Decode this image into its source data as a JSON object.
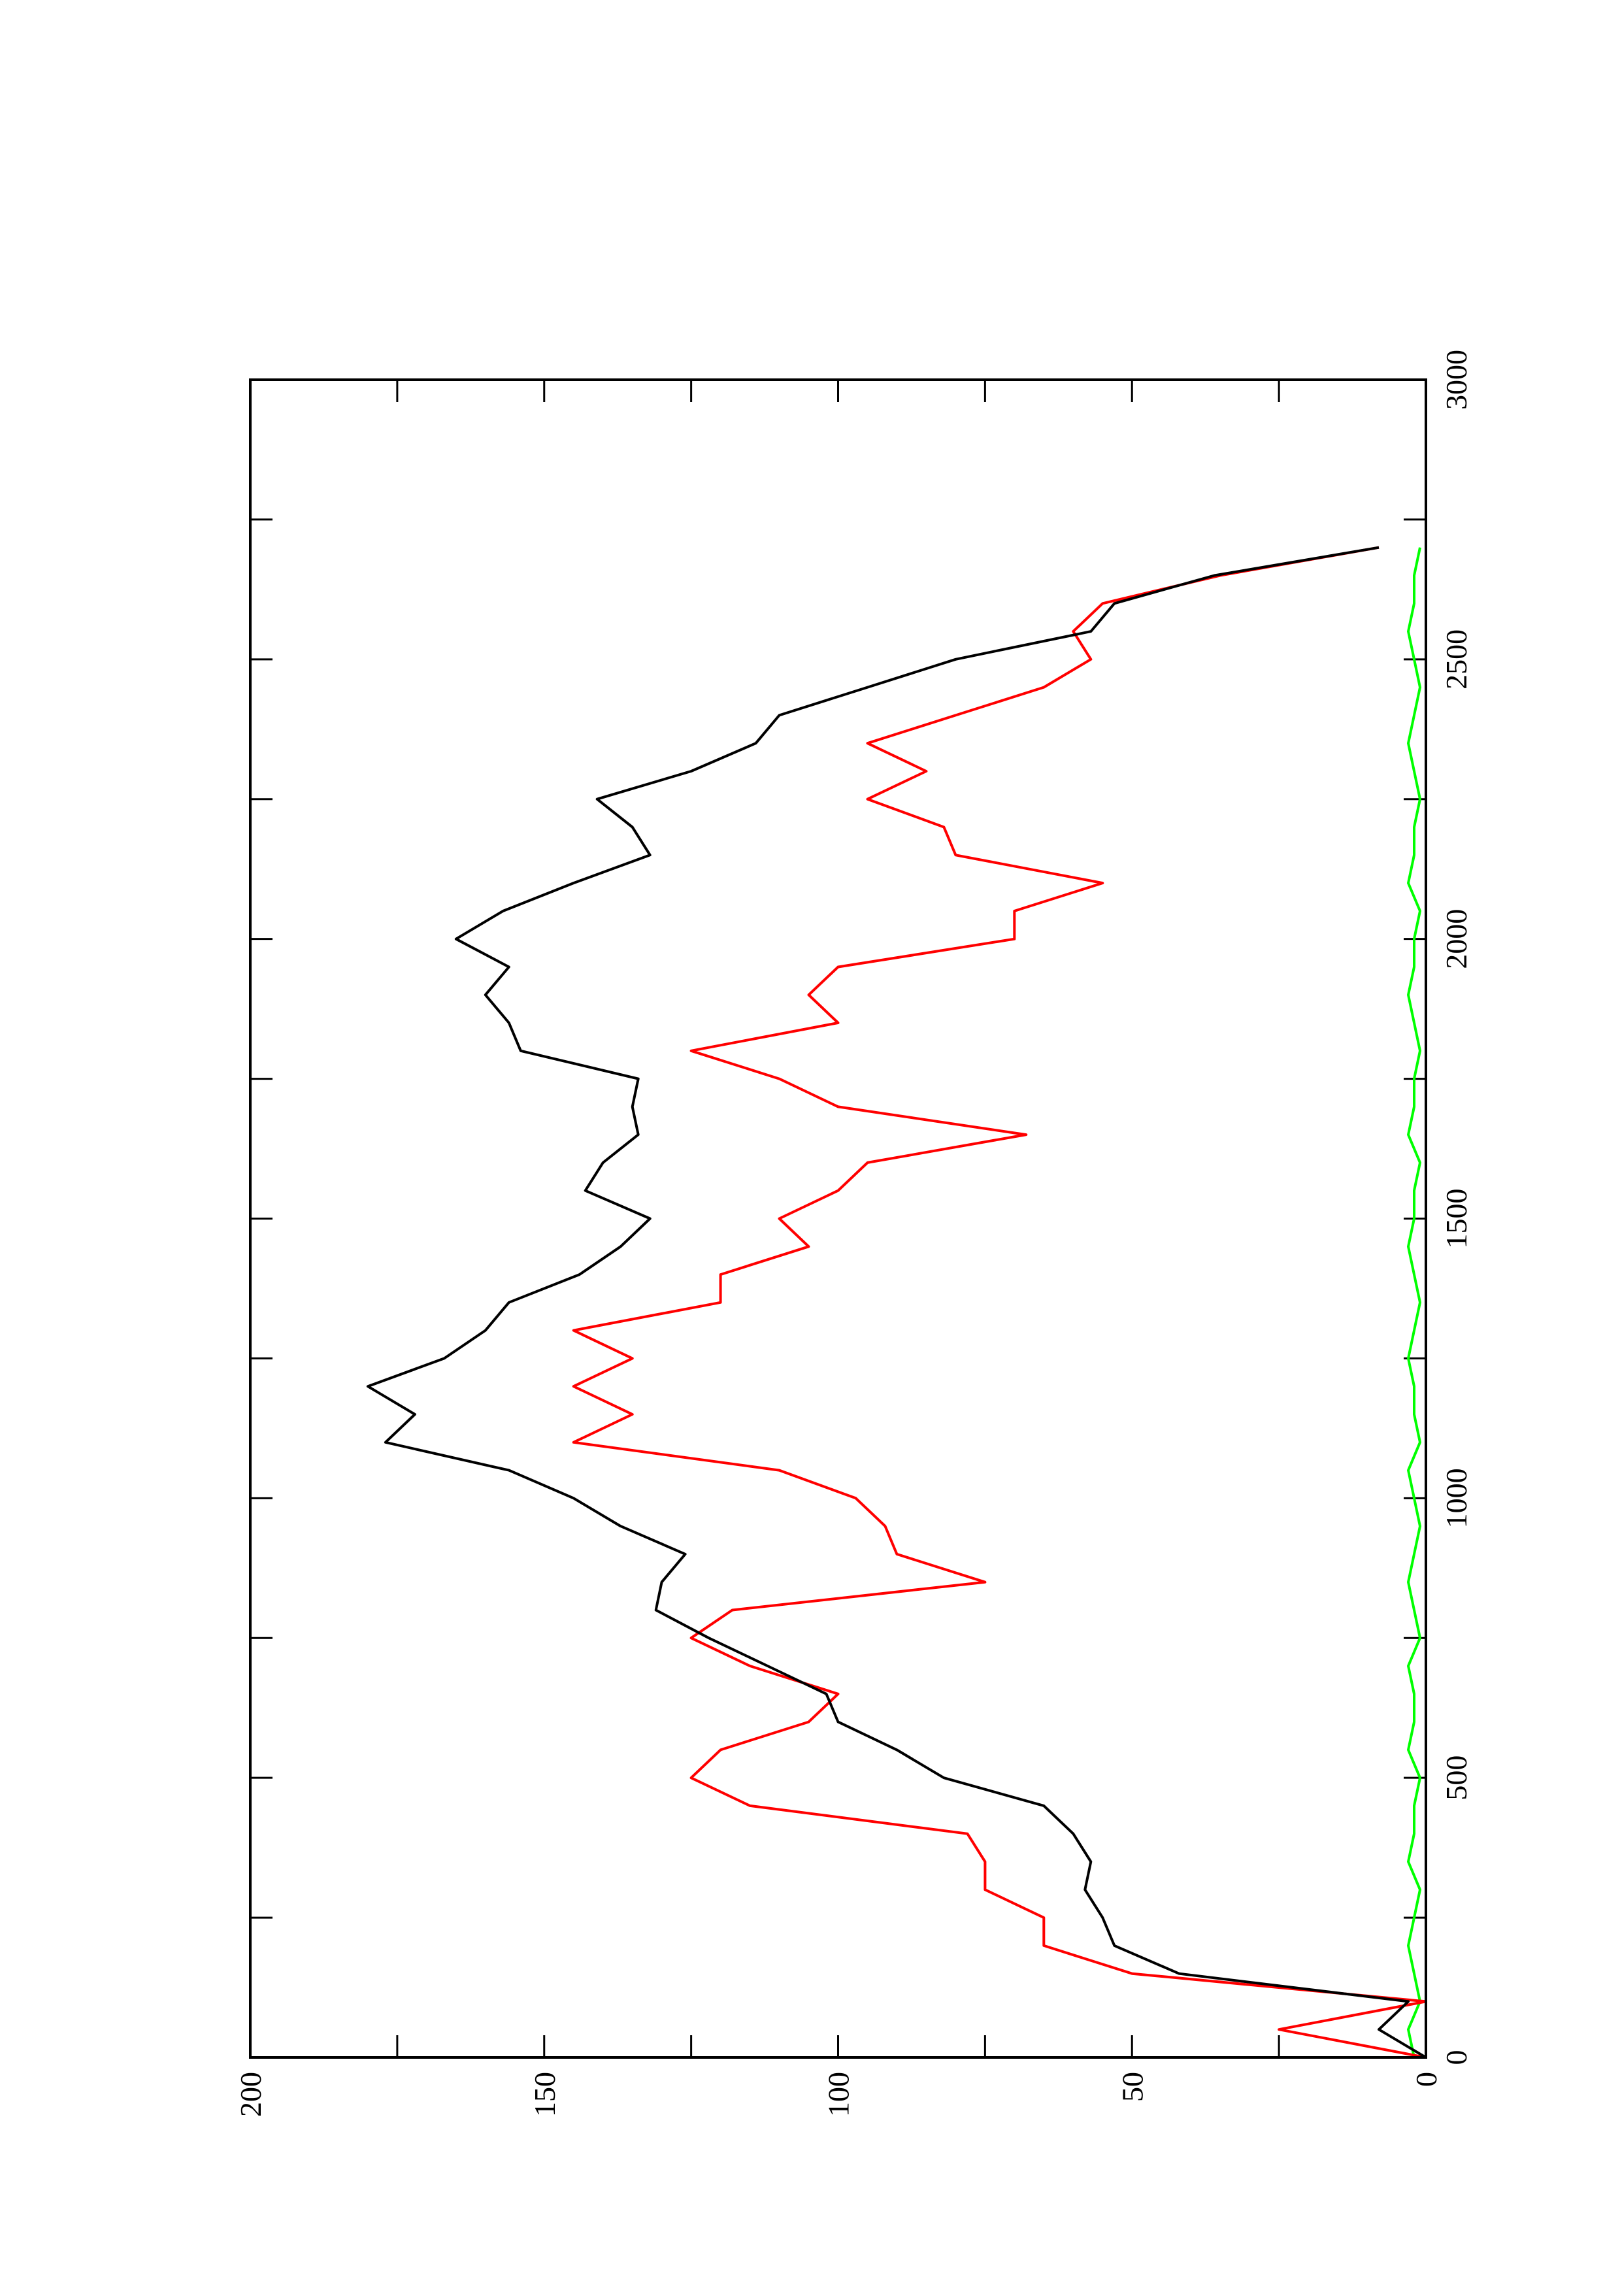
{
  "chart_data": {
    "type": "line",
    "x": [
      0,
      50,
      100,
      150,
      200,
      250,
      300,
      350,
      400,
      450,
      500,
      550,
      600,
      650,
      700,
      750,
      800,
      850,
      900,
      950,
      1000,
      1050,
      1100,
      1150,
      1200,
      1250,
      1300,
      1350,
      1400,
      1450,
      1500,
      1550,
      1600,
      1650,
      1700,
      1750,
      1800,
      1850,
      1900,
      1950,
      2000,
      2050,
      2100,
      2150,
      2200,
      2250,
      2300,
      2350,
      2400,
      2450,
      2500,
      2550,
      2600,
      2650,
      2700
    ],
    "series": [
      {
        "color": "#000000",
        "values": [
          0,
          8,
          3,
          42,
          53,
          55,
          58,
          57,
          60,
          65,
          82,
          90,
          100,
          102,
          112,
          122,
          131,
          130,
          126,
          137,
          145,
          156,
          177,
          172,
          180,
          167,
          160,
          156,
          144,
          137,
          132,
          143,
          140,
          134,
          135,
          134,
          154,
          156,
          160,
          156,
          165,
          157,
          145,
          132,
          135,
          141,
          125,
          114,
          110,
          95,
          80,
          57,
          53,
          36,
          8
        ]
      },
      {
        "color": "#ff0000",
        "values": [
          0,
          25,
          0,
          50,
          65,
          65,
          75,
          75,
          78,
          115,
          125,
          120,
          105,
          100,
          115,
          125,
          118,
          75,
          90,
          92,
          97,
          110,
          145,
          135,
          145,
          135,
          145,
          120,
          120,
          105,
          110,
          100,
          95,
          68,
          100,
          110,
          125,
          100,
          105,
          100,
          70,
          70,
          55,
          80,
          82,
          95,
          85,
          95,
          80,
          65,
          57,
          60,
          55,
          35,
          8
        ]
      },
      {
        "color": "#00ff00",
        "values": [
          2,
          3,
          1,
          2,
          3,
          2,
          1,
          3,
          2,
          2,
          1,
          3,
          2,
          2,
          3,
          1,
          2,
          3,
          2,
          1,
          2,
          3,
          1,
          2,
          2,
          3,
          2,
          1,
          2,
          3,
          2,
          2,
          1,
          3,
          2,
          2,
          1,
          2,
          3,
          2,
          2,
          1,
          3,
          2,
          2,
          1,
          2,
          3,
          2,
          1,
          2,
          3,
          2,
          2,
          1
        ]
      }
    ],
    "xlim": [
      0,
      3000
    ],
    "xticks": [
      0,
      500,
      1000,
      1500,
      2000,
      2500,
      3000
    ],
    "ylim": [
      0,
      200
    ],
    "yticks": [
      0,
      50,
      100,
      150,
      200
    ],
    "rotated": true
  }
}
